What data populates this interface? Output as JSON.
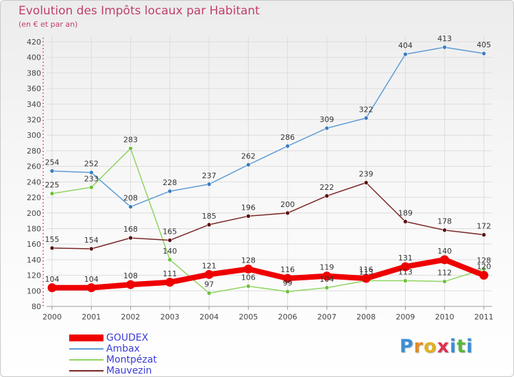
{
  "title": "Evolution des Impôts locaux par Habitant",
  "subtitle": "(en € et par an)",
  "brand": {
    "letters": [
      "P",
      "r",
      "o",
      "x",
      "i",
      "t",
      "i"
    ],
    "colors": [
      "#3a8fd6",
      "#e58a1f",
      "#e0b020",
      "#e03050",
      "#3a8fd6",
      "#56b83a",
      "#3a8fd6"
    ]
  },
  "chart_data": {
    "type": "line",
    "title": "Evolution des Impôts locaux par Habitant",
    "subtitle": "(en € et par an)",
    "xlabel": "",
    "ylabel": "",
    "x": [
      "2000",
      "2001",
      "2002",
      "2003",
      "2004",
      "2005",
      "2006",
      "2007",
      "2008",
      "2009",
      "2010",
      "2011"
    ],
    "ylim": [
      80,
      420
    ],
    "yticks": [
      80,
      100,
      120,
      140,
      160,
      180,
      200,
      220,
      240,
      260,
      280,
      300,
      320,
      340,
      360,
      380,
      400,
      420
    ],
    "grid": true,
    "legend_position": "bottom-left",
    "series": [
      {
        "name": "GOUDEX",
        "values": [
          104,
          104,
          108,
          111,
          121,
          128,
          116,
          119,
          116,
          131,
          140,
          120
        ],
        "color": "#ee0000",
        "style": "thick"
      },
      {
        "name": "Ambax",
        "values": [
          254,
          252,
          208,
          228,
          237,
          262,
          286,
          309,
          322,
          404,
          413,
          405
        ],
        "color": "#5b9bd5",
        "marker": "#3a7cc0",
        "style": "thin"
      },
      {
        "name": "Montpézat",
        "values": [
          225,
          233,
          283,
          140,
          97,
          106,
          99,
          104,
          113,
          113,
          112,
          128
        ],
        "color": "#8fd460",
        "marker": "#6cc23a",
        "style": "thin"
      },
      {
        "name": "Mauvezin",
        "values": [
          155,
          154,
          168,
          165,
          185,
          196,
          200,
          222,
          239,
          189,
          178,
          172
        ],
        "color": "#7a2424",
        "marker": "#5c1212",
        "style": "thin"
      }
    ]
  }
}
